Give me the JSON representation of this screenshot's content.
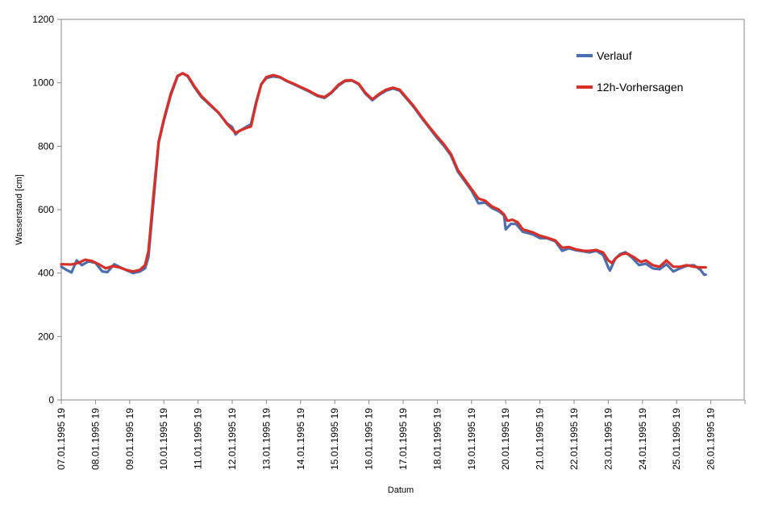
{
  "chart_data": {
    "type": "line",
    "title": "",
    "xlabel": "Datum",
    "ylabel": "Wasserstand [cm]",
    "ylim": [
      0,
      1200
    ],
    "yticks": [
      0,
      200,
      400,
      600,
      800,
      1000,
      1200
    ],
    "categories": [
      "07.01.1995 19",
      "08.01.1995 19",
      "09.01.1995 19",
      "10.01.1995 19",
      "11.01.1995 19",
      "12.01.1995 19",
      "13.01.1995 19",
      "14.01.1995 19",
      "15.01.1995 19",
      "16.01.1995 19",
      "17.01.1995 19",
      "18.01.1995 19",
      "19.01.1995 19",
      "20.01.1995 19",
      "21.01.1995 19",
      "22.01.1995 19",
      "23.01.1995 19",
      "24.01.1995 19",
      "25.01.1995 19",
      "26.01.1995 19"
    ],
    "xlim": [
      0,
      20
    ],
    "legend_position": "top-right",
    "series": [
      {
        "name": "Verlauf",
        "color": "#4a6fb0",
        "points": [
          [
            0,
            420
          ],
          [
            0.15,
            410
          ],
          [
            0.3,
            402
          ],
          [
            0.45,
            440
          ],
          [
            0.6,
            425
          ],
          [
            0.8,
            437
          ],
          [
            1.0,
            432
          ],
          [
            1.2,
            405
          ],
          [
            1.35,
            403
          ],
          [
            1.55,
            428
          ],
          [
            1.75,
            417
          ],
          [
            1.95,
            407
          ],
          [
            2.1,
            400
          ],
          [
            2.3,
            405
          ],
          [
            2.45,
            415
          ],
          [
            2.55,
            450
          ],
          [
            2.7,
            630
          ],
          [
            2.85,
            810
          ],
          [
            3.0,
            880
          ],
          [
            3.2,
            960
          ],
          [
            3.4,
            1020
          ],
          [
            3.55,
            1030
          ],
          [
            3.7,
            1020
          ],
          [
            3.9,
            985
          ],
          [
            4.1,
            955
          ],
          [
            4.35,
            930
          ],
          [
            4.6,
            905
          ],
          [
            4.85,
            872
          ],
          [
            5.0,
            860
          ],
          [
            5.1,
            837
          ],
          [
            5.2,
            848
          ],
          [
            5.4,
            860
          ],
          [
            5.55,
            870
          ],
          [
            5.7,
            940
          ],
          [
            5.85,
            995
          ],
          [
            6.0,
            1015
          ],
          [
            6.2,
            1020
          ],
          [
            6.4,
            1017
          ],
          [
            6.6,
            1005
          ],
          [
            6.8,
            995
          ],
          [
            7.0,
            985
          ],
          [
            7.2,
            975
          ],
          [
            7.5,
            958
          ],
          [
            7.7,
            952
          ],
          [
            7.9,
            968
          ],
          [
            8.1,
            990
          ],
          [
            8.3,
            1005
          ],
          [
            8.5,
            1007
          ],
          [
            8.7,
            995
          ],
          [
            8.9,
            965
          ],
          [
            9.1,
            945
          ],
          [
            9.3,
            962
          ],
          [
            9.5,
            975
          ],
          [
            9.7,
            982
          ],
          [
            9.9,
            975
          ],
          [
            10.1,
            950
          ],
          [
            10.3,
            925
          ],
          [
            10.5,
            895
          ],
          [
            10.75,
            860
          ],
          [
            11.0,
            825
          ],
          [
            11.2,
            800
          ],
          [
            11.4,
            770
          ],
          [
            11.6,
            720
          ],
          [
            11.8,
            690
          ],
          [
            12.0,
            660
          ],
          [
            12.2,
            620
          ],
          [
            12.4,
            622
          ],
          [
            12.6,
            605
          ],
          [
            12.8,
            595
          ],
          [
            12.95,
            582
          ],
          [
            13.0,
            538
          ],
          [
            13.15,
            555
          ],
          [
            13.3,
            555
          ],
          [
            13.5,
            530
          ],
          [
            13.8,
            522
          ],
          [
            14.0,
            510
          ],
          [
            14.2,
            510
          ],
          [
            14.45,
            500
          ],
          [
            14.65,
            470
          ],
          [
            14.85,
            478
          ],
          [
            15.05,
            472
          ],
          [
            15.3,
            468
          ],
          [
            15.45,
            465
          ],
          [
            15.65,
            470
          ],
          [
            15.85,
            457
          ],
          [
            16.0,
            418
          ],
          [
            16.05,
            408
          ],
          [
            16.2,
            445
          ],
          [
            16.35,
            460
          ],
          [
            16.5,
            466
          ],
          [
            16.7,
            448
          ],
          [
            16.9,
            425
          ],
          [
            17.1,
            430
          ],
          [
            17.3,
            415
          ],
          [
            17.5,
            412
          ],
          [
            17.7,
            428
          ],
          [
            17.9,
            405
          ],
          [
            18.1,
            415
          ],
          [
            18.3,
            423
          ],
          [
            18.5,
            425
          ],
          [
            18.7,
            410
          ],
          [
            18.8,
            395
          ],
          [
            18.85,
            395
          ]
        ]
      },
      {
        "name": "12h-Vorhersagen",
        "color": "#d82f27",
        "points": [
          [
            0,
            428
          ],
          [
            0.3,
            427
          ],
          [
            0.5,
            432
          ],
          [
            0.7,
            442
          ],
          [
            0.9,
            438
          ],
          [
            1.1,
            428
          ],
          [
            1.3,
            415
          ],
          [
            1.5,
            422
          ],
          [
            1.7,
            418
          ],
          [
            1.9,
            410
          ],
          [
            2.1,
            405
          ],
          [
            2.3,
            410
          ],
          [
            2.45,
            425
          ],
          [
            2.55,
            470
          ],
          [
            2.7,
            650
          ],
          [
            2.85,
            815
          ],
          [
            3.0,
            885
          ],
          [
            3.2,
            965
          ],
          [
            3.4,
            1022
          ],
          [
            3.55,
            1030
          ],
          [
            3.7,
            1022
          ],
          [
            3.9,
            988
          ],
          [
            4.1,
            958
          ],
          [
            4.35,
            932
          ],
          [
            4.6,
            906
          ],
          [
            4.85,
            870
          ],
          [
            5.0,
            853
          ],
          [
            5.1,
            842
          ],
          [
            5.2,
            848
          ],
          [
            5.4,
            857
          ],
          [
            5.55,
            862
          ],
          [
            5.7,
            935
          ],
          [
            5.85,
            995
          ],
          [
            6.0,
            1018
          ],
          [
            6.2,
            1024
          ],
          [
            6.4,
            1018
          ],
          [
            6.6,
            1006
          ],
          [
            6.8,
            997
          ],
          [
            7.0,
            987
          ],
          [
            7.2,
            977
          ],
          [
            7.5,
            960
          ],
          [
            7.7,
            955
          ],
          [
            7.9,
            970
          ],
          [
            8.1,
            993
          ],
          [
            8.3,
            1007
          ],
          [
            8.5,
            1008
          ],
          [
            8.7,
            997
          ],
          [
            8.9,
            968
          ],
          [
            9.1,
            948
          ],
          [
            9.3,
            965
          ],
          [
            9.5,
            978
          ],
          [
            9.7,
            985
          ],
          [
            9.9,
            978
          ],
          [
            10.1,
            953
          ],
          [
            10.3,
            928
          ],
          [
            10.5,
            898
          ],
          [
            10.75,
            863
          ],
          [
            11.0,
            830
          ],
          [
            11.2,
            805
          ],
          [
            11.4,
            775
          ],
          [
            11.6,
            725
          ],
          [
            11.8,
            695
          ],
          [
            12.0,
            665
          ],
          [
            12.2,
            635
          ],
          [
            12.4,
            628
          ],
          [
            12.6,
            610
          ],
          [
            12.8,
            600
          ],
          [
            12.95,
            585
          ],
          [
            13.05,
            565
          ],
          [
            13.2,
            568
          ],
          [
            13.35,
            560
          ],
          [
            13.5,
            538
          ],
          [
            13.8,
            528
          ],
          [
            14.0,
            518
          ],
          [
            14.2,
            512
          ],
          [
            14.45,
            503
          ],
          [
            14.65,
            480
          ],
          [
            14.85,
            482
          ],
          [
            15.05,
            475
          ],
          [
            15.3,
            470
          ],
          [
            15.45,
            470
          ],
          [
            15.65,
            473
          ],
          [
            15.85,
            465
          ],
          [
            16.0,
            440
          ],
          [
            16.1,
            432
          ],
          [
            16.25,
            450
          ],
          [
            16.4,
            460
          ],
          [
            16.55,
            462
          ],
          [
            16.75,
            450
          ],
          [
            16.95,
            435
          ],
          [
            17.1,
            440
          ],
          [
            17.3,
            425
          ],
          [
            17.5,
            420
          ],
          [
            17.7,
            440
          ],
          [
            17.9,
            420
          ],
          [
            18.1,
            420
          ],
          [
            18.3,
            425
          ],
          [
            18.5,
            420
          ],
          [
            18.7,
            418
          ],
          [
            18.85,
            418
          ]
        ]
      }
    ]
  }
}
